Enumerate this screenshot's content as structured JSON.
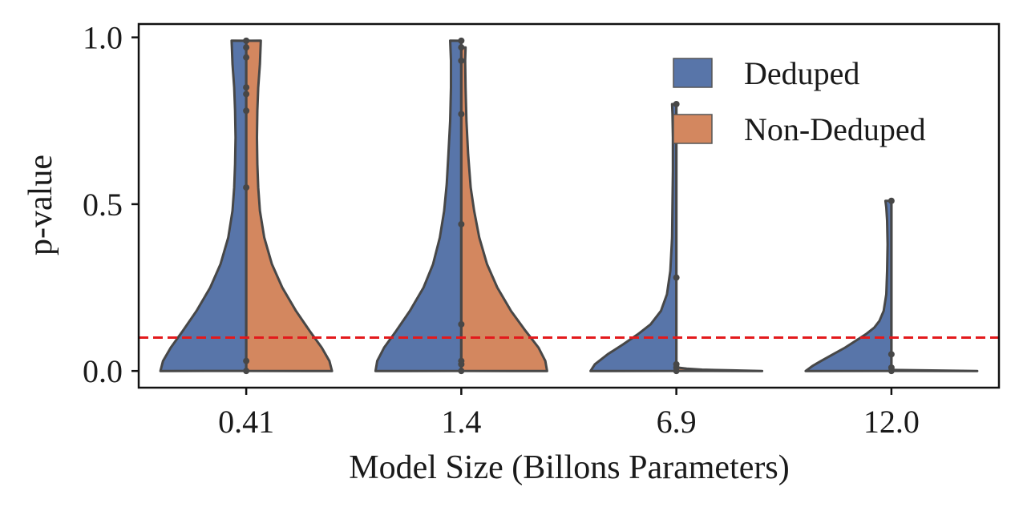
{
  "chart_data": {
    "type": "violin",
    "xlabel": "Model Size (Billons Parameters)",
    "ylabel": "p-value",
    "categories": [
      "0.41",
      "1.4",
      "6.9",
      "12.0"
    ],
    "ylim": [
      -0.05,
      1.04
    ],
    "yticks": [
      0.0,
      0.5,
      1.0
    ],
    "ytick_labels": [
      "0.0",
      "0.5",
      "1.0"
    ],
    "legend_position": "top-right",
    "threshold": {
      "value": 0.1,
      "color": "#e31a1c",
      "style": "dashed"
    },
    "colors": {
      "Deduped": "#5875a9",
      "Non-Deduped": "#d3875f",
      "outline": "#474747"
    },
    "series": [
      {
        "name": "Deduped",
        "side": "left",
        "violins": [
          {
            "category": "0.41",
            "ymin": 0.0,
            "ymax": 0.99,
            "profile": [
              [
                0.0,
                1.0
              ],
              [
                0.03,
                0.97
              ],
              [
                0.07,
                0.88
              ],
              [
                0.12,
                0.74
              ],
              [
                0.18,
                0.58
              ],
              [
                0.25,
                0.42
              ],
              [
                0.32,
                0.3
              ],
              [
                0.4,
                0.21
              ],
              [
                0.48,
                0.16
              ],
              [
                0.55,
                0.14
              ],
              [
                0.62,
                0.13
              ],
              [
                0.7,
                0.125
              ],
              [
                0.78,
                0.13
              ],
              [
                0.85,
                0.14
              ],
              [
                0.92,
                0.16
              ],
              [
                0.99,
                0.17
              ]
            ],
            "points": [
              0.0,
              0.03,
              0.55,
              0.78,
              0.83,
              0.85,
              0.94,
              0.97,
              0.99
            ]
          },
          {
            "category": "1.4",
            "ymin": 0.0,
            "ymax": 0.99,
            "profile": [
              [
                0.0,
                1.0
              ],
              [
                0.03,
                0.98
              ],
              [
                0.07,
                0.9
              ],
              [
                0.12,
                0.76
              ],
              [
                0.18,
                0.6
              ],
              [
                0.25,
                0.44
              ],
              [
                0.32,
                0.33
              ],
              [
                0.4,
                0.25
              ],
              [
                0.48,
                0.2
              ],
              [
                0.56,
                0.17
              ],
              [
                0.65,
                0.15
              ],
              [
                0.75,
                0.13
              ],
              [
                0.85,
                0.12
              ],
              [
                0.93,
                0.12
              ],
              [
                0.99,
                0.13
              ]
            ],
            "points": [
              0.0,
              0.02,
              0.03,
              0.14,
              0.44,
              0.77,
              0.93,
              0.97,
              0.99
            ]
          },
          {
            "category": "6.9",
            "ymin": 0.0,
            "ymax": 0.8,
            "profile": [
              [
                0.0,
                1.0
              ],
              [
                0.02,
                0.95
              ],
              [
                0.05,
                0.8
              ],
              [
                0.08,
                0.62
              ],
              [
                0.11,
                0.45
              ],
              [
                0.14,
                0.3
              ],
              [
                0.18,
                0.18
              ],
              [
                0.23,
                0.11
              ],
              [
                0.3,
                0.07
              ],
              [
                0.4,
                0.05
              ],
              [
                0.5,
                0.045
              ],
              [
                0.6,
                0.04
              ],
              [
                0.7,
                0.04
              ],
              [
                0.77,
                0.045
              ],
              [
                0.8,
                0.05
              ]
            ],
            "points": [
              0.0,
              0.01,
              0.02,
              0.28,
              0.8
            ]
          },
          {
            "category": "12.0",
            "ymin": 0.0,
            "ymax": 0.51,
            "profile": [
              [
                0.0,
                1.0
              ],
              [
                0.015,
                0.92
              ],
              [
                0.03,
                0.82
              ],
              [
                0.05,
                0.68
              ],
              [
                0.07,
                0.54
              ],
              [
                0.09,
                0.42
              ],
              [
                0.11,
                0.3
              ],
              [
                0.13,
                0.2
              ],
              [
                0.15,
                0.14
              ],
              [
                0.18,
                0.09
              ],
              [
                0.23,
                0.06
              ],
              [
                0.3,
                0.05
              ],
              [
                0.38,
                0.045
              ],
              [
                0.45,
                0.05
              ],
              [
                0.49,
                0.06
              ],
              [
                0.51,
                0.07
              ]
            ],
            "points": [
              0.0,
              0.01,
              0.05,
              0.51
            ]
          }
        ]
      },
      {
        "name": "Non-Deduped",
        "side": "right",
        "violins": [
          {
            "category": "0.41",
            "ymin": 0.0,
            "ymax": 0.99,
            "profile": [
              [
                0.0,
                1.0
              ],
              [
                0.03,
                0.97
              ],
              [
                0.07,
                0.88
              ],
              [
                0.12,
                0.74
              ],
              [
                0.18,
                0.58
              ],
              [
                0.25,
                0.42
              ],
              [
                0.32,
                0.3
              ],
              [
                0.4,
                0.21
              ],
              [
                0.48,
                0.16
              ],
              [
                0.55,
                0.14
              ],
              [
                0.62,
                0.13
              ],
              [
                0.7,
                0.125
              ],
              [
                0.78,
                0.13
              ],
              [
                0.85,
                0.14
              ],
              [
                0.92,
                0.16
              ],
              [
                0.99,
                0.17
              ]
            ],
            "points": []
          },
          {
            "category": "1.4",
            "ymin": 0.0,
            "ymax": 0.97,
            "profile": [
              [
                0.0,
                1.0
              ],
              [
                0.03,
                0.98
              ],
              [
                0.07,
                0.9
              ],
              [
                0.12,
                0.75
              ],
              [
                0.18,
                0.58
              ],
              [
                0.25,
                0.42
              ],
              [
                0.32,
                0.3
              ],
              [
                0.4,
                0.21
              ],
              [
                0.48,
                0.15
              ],
              [
                0.55,
                0.11
              ],
              [
                0.65,
                0.08
              ],
              [
                0.75,
                0.06
              ],
              [
                0.85,
                0.05
              ],
              [
                0.93,
                0.045
              ],
              [
                0.97,
                0.05
              ]
            ],
            "points": []
          },
          {
            "category": "6.9",
            "ymin": 0.0,
            "ymax": 0.01,
            "profile": [
              [
                0.0,
                1.0
              ],
              [
                0.002,
                0.6
              ],
              [
                0.004,
                0.3
              ],
              [
                0.007,
                0.12
              ],
              [
                0.01,
                0.02
              ]
            ],
            "points": []
          },
          {
            "category": "12.0",
            "ymin": 0.0,
            "ymax": 0.003,
            "profile": [
              [
                0.0,
                1.0
              ],
              [
                0.002,
                0.3
              ],
              [
                0.003,
                0.02
              ]
            ],
            "points": []
          }
        ]
      }
    ]
  }
}
